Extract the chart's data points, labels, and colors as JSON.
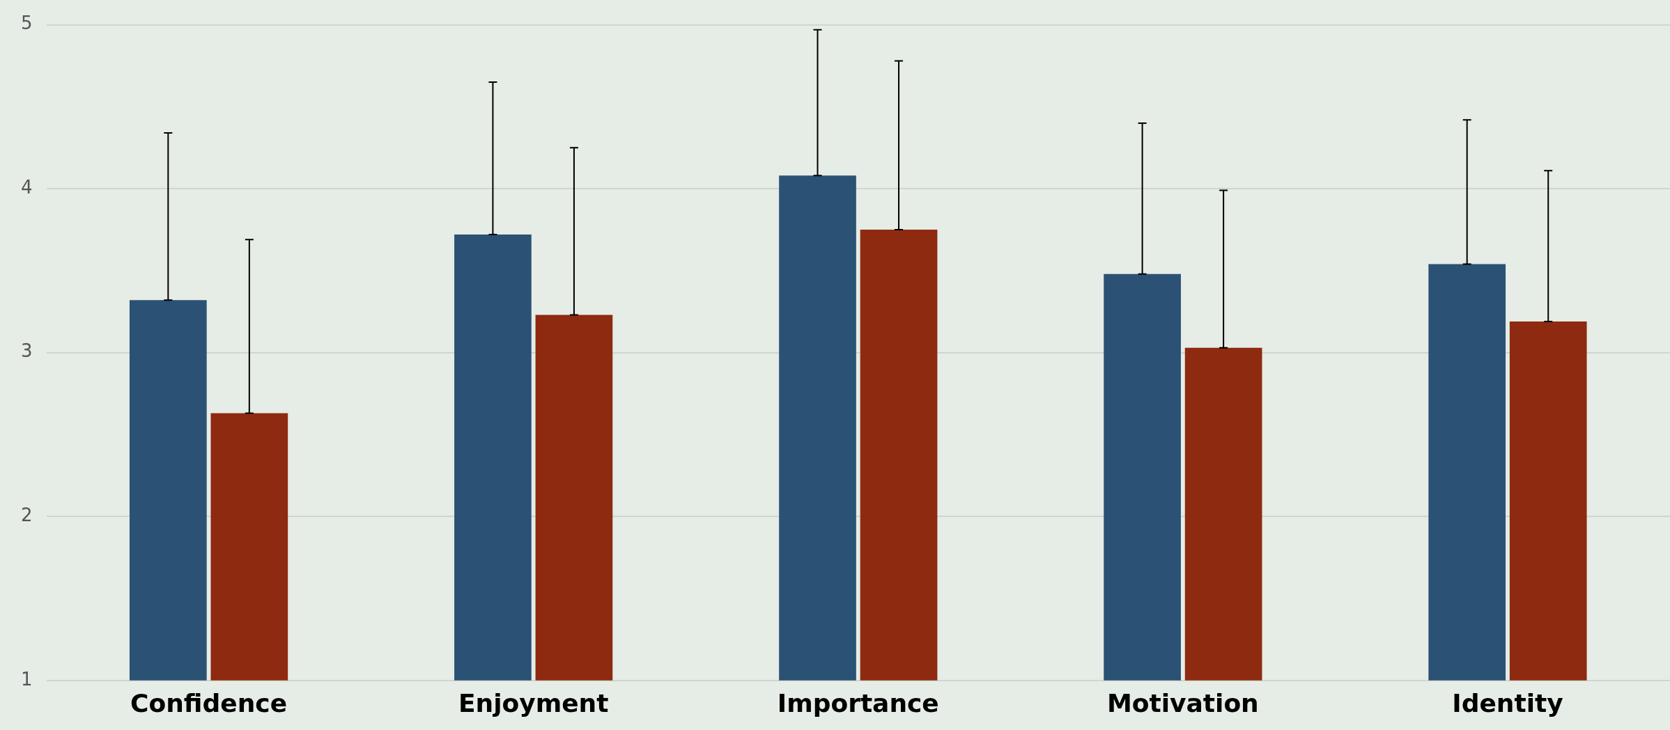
{
  "chart_data": {
    "type": "bar",
    "categories": [
      "Confidence",
      "Enjoyment",
      "Importance",
      "Motivation",
      "Identity"
    ],
    "series": [
      {
        "color": "#2b5275",
        "values": [
          3.32,
          3.72,
          4.08,
          3.48,
          3.54
        ],
        "errors": [
          [
            3.32,
            4.34
          ],
          [
            3.72,
            4.65
          ],
          [
            4.08,
            4.97
          ],
          [
            3.48,
            4.4
          ],
          [
            3.54,
            4.42
          ]
        ]
      },
      {
        "color": "#8e2a10",
        "values": [
          2.63,
          3.23,
          3.75,
          3.03,
          3.19
        ],
        "errors": [
          [
            2.63,
            3.69
          ],
          [
            3.23,
            4.25
          ],
          [
            3.75,
            4.78
          ],
          [
            3.03,
            3.99
          ],
          [
            3.19,
            4.11
          ]
        ]
      }
    ],
    "ylim": [
      1,
      5
    ],
    "yticks": [
      1,
      2,
      3,
      4,
      5
    ],
    "grid": "y",
    "legend": false
  }
}
